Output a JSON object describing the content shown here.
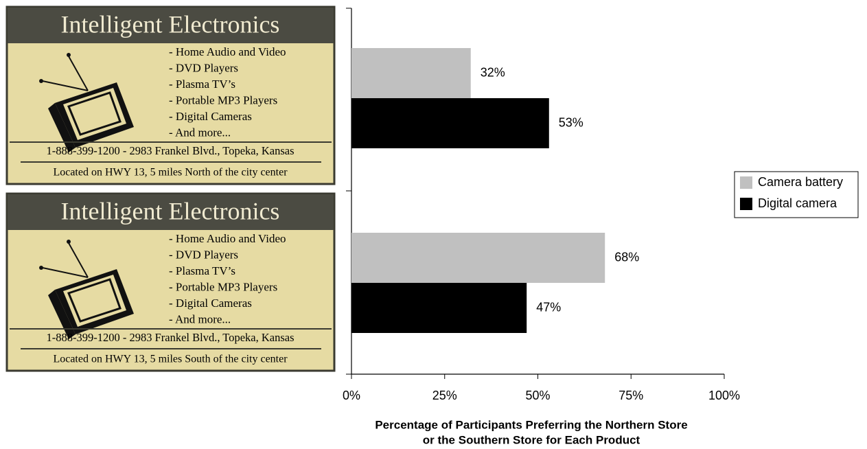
{
  "chart_data": {
    "type": "hbar",
    "categories": [
      null,
      null
    ],
    "ads": [
      {
        "title": "Intelligent Electronics",
        "items": [
          "- Home Audio and Video",
          "- DVD Players",
          "- Plasma TV’s",
          "- Portable MP3 Players",
          "- Digital Cameras",
          "- And more..."
        ],
        "address": "1-888-399-1200 - 2983  Frankel Blvd., Topeka, Kansas",
        "location": "Located on HWY 13, 5 miles North of the city center"
      },
      {
        "title": "Intelligent Electronics",
        "items": [
          "- Home Audio and Video",
          "- DVD Players",
          "- Plasma TV’s",
          "- Portable MP3 Players",
          "- Digital Cameras",
          "- And more..."
        ],
        "address": "1-888-399-1200 - 2983  Frankel Blvd., Topeka, Kansas",
        "location": "Located on HWY 13, 5 miles South of the city center"
      }
    ],
    "series": [
      {
        "name": "Camera battery",
        "color": "#c0c0c0",
        "values": [
          32,
          68
        ],
        "value_labels": [
          "32%",
          "68%"
        ]
      },
      {
        "name": "Digital camera",
        "color": "#000000",
        "values": [
          53,
          47
        ],
        "value_labels": [
          "53%",
          "47%"
        ]
      }
    ],
    "xlim": [
      0,
      100
    ],
    "xticks": [
      {
        "value": 0,
        "label": "0%"
      },
      {
        "value": 25,
        "label": "25%"
      },
      {
        "value": 50,
        "label": "50%"
      },
      {
        "value": 75,
        "label": "75%"
      },
      {
        "value": 100,
        "label": "100%"
      }
    ],
    "xlabel": [
      "Percentage of Participants Preferring the Northern Store",
      "or the Southern Store for Each Product"
    ],
    "legend": "right"
  }
}
